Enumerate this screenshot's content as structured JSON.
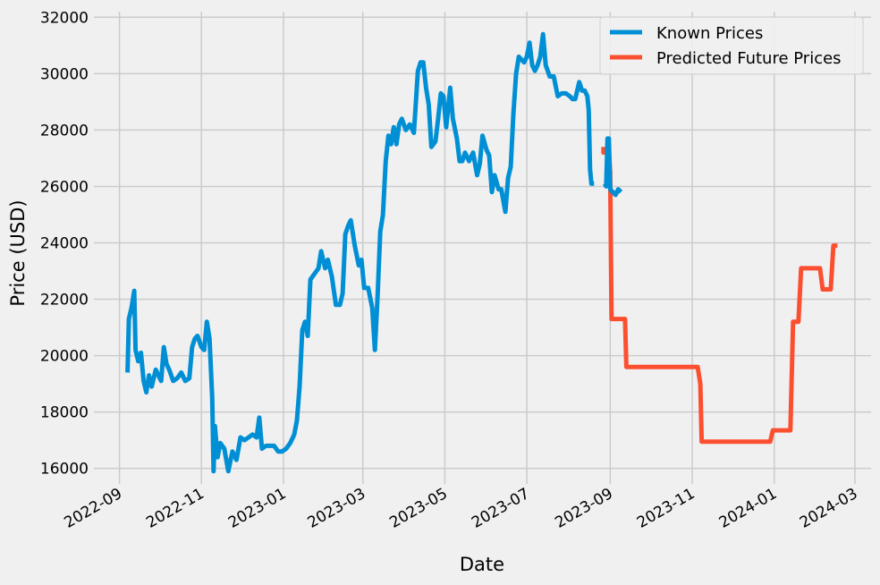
{
  "chart_data": {
    "type": "line",
    "xlabel": "Date",
    "ylabel": "Price (USD)",
    "ylim": [
      15450,
      32200
    ],
    "xlim": [
      "2022-08-13",
      "2024-03-13"
    ],
    "grid": true,
    "legend_position": "top-right",
    "y_ticks": [
      16000,
      18000,
      20000,
      22000,
      24000,
      26000,
      28000,
      30000,
      32000
    ],
    "y_tick_labels": [
      "16000",
      "18000",
      "20000",
      "22000",
      "24000",
      "26000",
      "28000",
      "30000",
      "32000"
    ],
    "x_ticks": [
      "2022-09-01",
      "2022-11-01",
      "2023-01-01",
      "2023-03-01",
      "2023-05-01",
      "2023-07-01",
      "2023-09-01",
      "2023-11-01",
      "2024-01-01",
      "2024-03-01"
    ],
    "x_tick_labels": [
      "2022-09",
      "2022-11",
      "2023-01",
      "2023-03",
      "2023-05",
      "2023-07",
      "2023-09",
      "2023-11",
      "2024-01",
      "2024-03"
    ],
    "series": [
      {
        "name": "Known Prices",
        "color": "#008fd5",
        "points": [
          [
            "2022-09-07",
            19400
          ],
          [
            "2022-09-08",
            21300
          ],
          [
            "2022-09-10",
            21700
          ],
          [
            "2022-09-12",
            22300
          ],
          [
            "2022-09-13",
            20200
          ],
          [
            "2022-09-15",
            19800
          ],
          [
            "2022-09-17",
            20100
          ],
          [
            "2022-09-19",
            19100
          ],
          [
            "2022-09-21",
            18700
          ],
          [
            "2022-09-23",
            19300
          ],
          [
            "2022-09-25",
            18900
          ],
          [
            "2022-09-28",
            19500
          ],
          [
            "2022-09-30",
            19300
          ],
          [
            "2022-10-02",
            19100
          ],
          [
            "2022-10-04",
            20300
          ],
          [
            "2022-10-06",
            19700
          ],
          [
            "2022-10-08",
            19500
          ],
          [
            "2022-10-11",
            19100
          ],
          [
            "2022-10-14",
            19200
          ],
          [
            "2022-10-17",
            19400
          ],
          [
            "2022-10-20",
            19100
          ],
          [
            "2022-10-23",
            19200
          ],
          [
            "2022-10-25",
            20300
          ],
          [
            "2022-10-27",
            20600
          ],
          [
            "2022-10-29",
            20700
          ],
          [
            "2022-11-01",
            20300
          ],
          [
            "2022-11-03",
            20200
          ],
          [
            "2022-11-05",
            21200
          ],
          [
            "2022-11-07",
            20600
          ],
          [
            "2022-11-09",
            18500
          ],
          [
            "2022-11-10",
            15900
          ],
          [
            "2022-11-11",
            17500
          ],
          [
            "2022-11-13",
            16400
          ],
          [
            "2022-11-15",
            16900
          ],
          [
            "2022-11-18",
            16700
          ],
          [
            "2022-11-21",
            15900
          ],
          [
            "2022-11-24",
            16600
          ],
          [
            "2022-11-27",
            16300
          ],
          [
            "2022-11-30",
            17100
          ],
          [
            "2022-12-03",
            17000
          ],
          [
            "2022-12-06",
            17100
          ],
          [
            "2022-12-09",
            17200
          ],
          [
            "2022-12-12",
            17100
          ],
          [
            "2022-12-14",
            17800
          ],
          [
            "2022-12-16",
            16700
          ],
          [
            "2022-12-19",
            16800
          ],
          [
            "2022-12-22",
            16800
          ],
          [
            "2022-12-25",
            16800
          ],
          [
            "2022-12-28",
            16600
          ],
          [
            "2022-12-31",
            16600
          ],
          [
            "2023-01-03",
            16700
          ],
          [
            "2023-01-06",
            16900
          ],
          [
            "2023-01-09",
            17200
          ],
          [
            "2023-01-11",
            17700
          ],
          [
            "2023-01-13",
            18900
          ],
          [
            "2023-01-15",
            20900
          ],
          [
            "2023-01-17",
            21200
          ],
          [
            "2023-01-19",
            20700
          ],
          [
            "2023-01-21",
            22700
          ],
          [
            "2023-01-24",
            22900
          ],
          [
            "2023-01-27",
            23100
          ],
          [
            "2023-01-29",
            23700
          ],
          [
            "2023-02-01",
            23100
          ],
          [
            "2023-02-03",
            23400
          ],
          [
            "2023-02-06",
            22800
          ],
          [
            "2023-02-09",
            21800
          ],
          [
            "2023-02-12",
            21800
          ],
          [
            "2023-02-14",
            22200
          ],
          [
            "2023-02-16",
            24300
          ],
          [
            "2023-02-18",
            24600
          ],
          [
            "2023-02-20",
            24800
          ],
          [
            "2023-02-23",
            23900
          ],
          [
            "2023-02-26",
            23200
          ],
          [
            "2023-02-28",
            23400
          ],
          [
            "2023-03-02",
            22400
          ],
          [
            "2023-03-05",
            22400
          ],
          [
            "2023-03-08",
            21700
          ],
          [
            "2023-03-10",
            20200
          ],
          [
            "2023-03-12",
            22100
          ],
          [
            "2023-03-14",
            24400
          ],
          [
            "2023-03-16",
            25000
          ],
          [
            "2023-03-18",
            26900
          ],
          [
            "2023-03-20",
            27800
          ],
          [
            "2023-03-22",
            27500
          ],
          [
            "2023-03-24",
            28100
          ],
          [
            "2023-03-26",
            27500
          ],
          [
            "2023-03-28",
            28200
          ],
          [
            "2023-03-30",
            28400
          ],
          [
            "2023-04-02",
            28000
          ],
          [
            "2023-04-05",
            28200
          ],
          [
            "2023-04-08",
            27900
          ],
          [
            "2023-04-11",
            30100
          ],
          [
            "2023-04-13",
            30400
          ],
          [
            "2023-04-15",
            30400
          ],
          [
            "2023-04-17",
            29500
          ],
          [
            "2023-04-19",
            28900
          ],
          [
            "2023-04-21",
            27400
          ],
          [
            "2023-04-24",
            27600
          ],
          [
            "2023-04-26",
            28400
          ],
          [
            "2023-04-28",
            29300
          ],
          [
            "2023-04-30",
            29200
          ],
          [
            "2023-05-02",
            28100
          ],
          [
            "2023-05-05",
            29500
          ],
          [
            "2023-05-07",
            28400
          ],
          [
            "2023-05-10",
            27700
          ],
          [
            "2023-05-12",
            26900
          ],
          [
            "2023-05-14",
            26900
          ],
          [
            "2023-05-16",
            27200
          ],
          [
            "2023-05-19",
            26900
          ],
          [
            "2023-05-22",
            27200
          ],
          [
            "2023-05-25",
            26400
          ],
          [
            "2023-05-27",
            26800
          ],
          [
            "2023-05-29",
            27800
          ],
          [
            "2023-06-01",
            27300
          ],
          [
            "2023-06-03",
            27100
          ],
          [
            "2023-06-05",
            25800
          ],
          [
            "2023-06-07",
            26400
          ],
          [
            "2023-06-10",
            25900
          ],
          [
            "2023-06-12",
            25900
          ],
          [
            "2023-06-15",
            25100
          ],
          [
            "2023-06-17",
            26300
          ],
          [
            "2023-06-19",
            26700
          ],
          [
            "2023-06-21",
            28600
          ],
          [
            "2023-06-23",
            30000
          ],
          [
            "2023-06-25",
            30600
          ],
          [
            "2023-06-27",
            30500
          ],
          [
            "2023-06-29",
            30400
          ],
          [
            "2023-07-01",
            30600
          ],
          [
            "2023-07-03",
            31100
          ],
          [
            "2023-07-05",
            30300
          ],
          [
            "2023-07-07",
            30100
          ],
          [
            "2023-07-09",
            30300
          ],
          [
            "2023-07-11",
            30600
          ],
          [
            "2023-07-13",
            31400
          ],
          [
            "2023-07-15",
            30300
          ],
          [
            "2023-07-18",
            29900
          ],
          [
            "2023-07-21",
            29900
          ],
          [
            "2023-07-24",
            29200
          ],
          [
            "2023-07-27",
            29300
          ],
          [
            "2023-07-30",
            29300
          ],
          [
            "2023-08-02",
            29200
          ],
          [
            "2023-08-04",
            29100
          ],
          [
            "2023-08-06",
            29100
          ],
          [
            "2023-08-09",
            29700
          ],
          [
            "2023-08-11",
            29400
          ],
          [
            "2023-08-13",
            29400
          ],
          [
            "2023-08-15",
            29200
          ],
          [
            "2023-08-16",
            28700
          ],
          [
            "2023-08-17",
            26600
          ],
          [
            "2023-08-18",
            26100
          ],
          [
            "2023-08-20",
            26100
          ]
        ]
      },
      {
        "name": "Predicted Future Prices",
        "color": "#fc4f30",
        "points": [
          [
            "2023-08-27",
            27400
          ],
          [
            "2023-08-27",
            27200
          ],
          [
            "2023-08-30",
            27300
          ],
          [
            "2023-08-31",
            27300
          ],
          [
            "2023-09-01",
            26500
          ],
          [
            "2023-09-02",
            21300
          ],
          [
            "2023-09-06",
            21300
          ],
          [
            "2023-09-10",
            21300
          ],
          [
            "2023-09-12",
            21300
          ],
          [
            "2023-09-13",
            19600
          ],
          [
            "2023-10-01",
            19600
          ],
          [
            "2023-10-20",
            19600
          ],
          [
            "2023-11-05",
            19600
          ],
          [
            "2023-11-07",
            19000
          ],
          [
            "2023-11-08",
            16950
          ],
          [
            "2023-11-20",
            16950
          ],
          [
            "2023-12-10",
            16950
          ],
          [
            "2023-12-28",
            16950
          ],
          [
            "2023-12-29",
            16950
          ],
          [
            "2023-12-31",
            17350
          ],
          [
            "2024-01-13",
            17350
          ],
          [
            "2024-01-15",
            21200
          ],
          [
            "2024-01-19",
            21200
          ],
          [
            "2024-01-21",
            23100
          ],
          [
            "2024-02-04",
            23100
          ],
          [
            "2024-02-06",
            22350
          ],
          [
            "2024-02-12",
            22350
          ],
          [
            "2024-02-14",
            23900
          ],
          [
            "2024-02-17",
            23900
          ]
        ]
      },
      {
        "name": "",
        "color": "#008fd5",
        "points": [
          [
            "2023-08-28",
            26100
          ],
          [
            "2023-08-29",
            26000
          ],
          [
            "2023-08-30",
            27700
          ],
          [
            "2023-08-31",
            27700
          ],
          [
            "2023-09-01",
            25900
          ],
          [
            "2023-09-03",
            25800
          ],
          [
            "2023-09-05",
            25700
          ],
          [
            "2023-09-07",
            25900
          ],
          [
            "2023-09-09",
            25800
          ]
        ]
      }
    ],
    "legend": [
      "Known Prices",
      "Predicted Future Prices"
    ]
  }
}
